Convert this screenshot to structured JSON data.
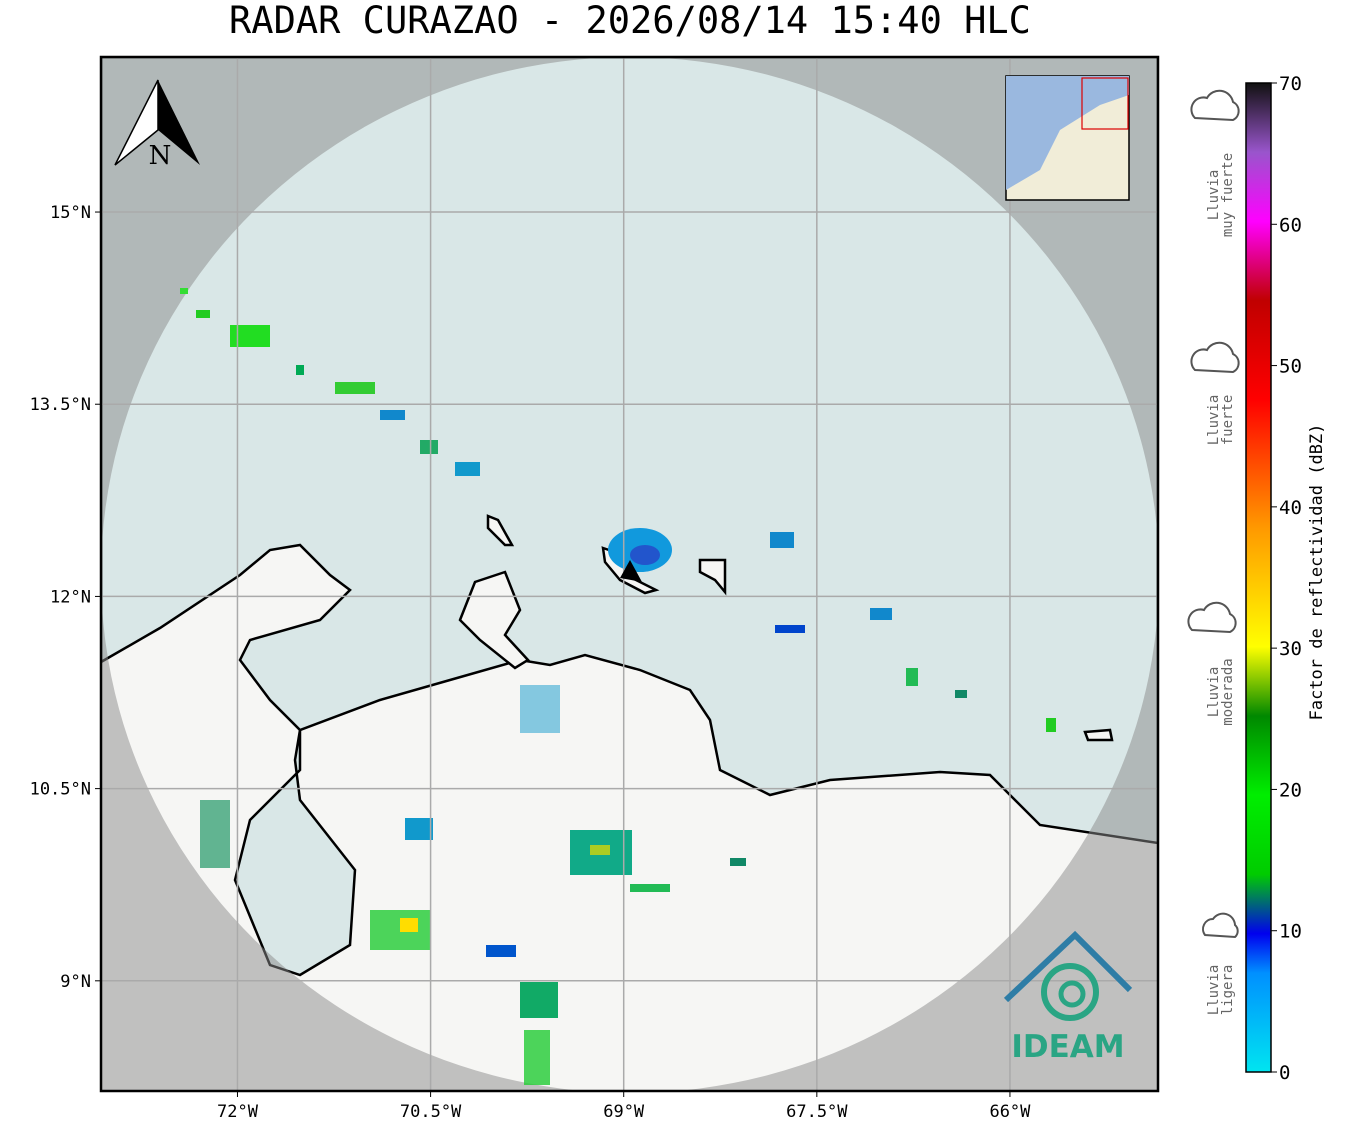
{
  "map": {
    "title": "RADAR CURAZAO - 2026/08/14 15:40 HLC",
    "xlim": [
      -73.06,
      -64.85
    ],
    "ylim": [
      8.14,
      16.21
    ],
    "lat_ticks": [
      {
        "value": 15,
        "label": "15°N"
      },
      {
        "value": 13.5,
        "label": "13.5°N"
      },
      {
        "value": 12,
        "label": "12°N"
      },
      {
        "value": 10.5,
        "label": "10.5°N"
      },
      {
        "value": 9,
        "label": "9°N"
      }
    ],
    "lon_ticks": [
      {
        "value": -72,
        "label": "72°W"
      },
      {
        "value": -70.5,
        "label": "70.5°W"
      },
      {
        "value": -69,
        "label": "69°W"
      },
      {
        "value": -67.5,
        "label": "67.5°W"
      },
      {
        "value": -66,
        "label": "66°W"
      }
    ],
    "north_label": "N",
    "logo": "IDEAM"
  },
  "colorbar": {
    "label": "Factor de reflectividad (dBZ)",
    "lim": [
      0,
      70
    ],
    "ticks": [
      0,
      10,
      20,
      30,
      40,
      50,
      60,
      70
    ]
  },
  "legend": [
    {
      "lines": [
        "Lluvia",
        "muy fuerte"
      ]
    },
    {
      "lines": [
        "Lluvia",
        "fuerte"
      ]
    },
    {
      "lines": [
        "Lluvia",
        "moderada"
      ]
    },
    {
      "lines": [
        "Lluvia",
        "ligera"
      ]
    }
  ]
}
